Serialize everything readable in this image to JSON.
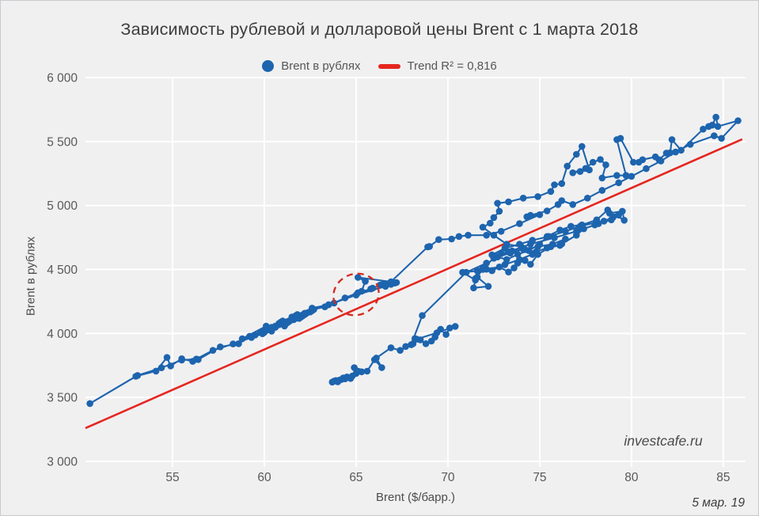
{
  "title": "Зависимость рублевой и долларовой цены Brent с 1 марта 2018",
  "legend": {
    "series_label": "Brent в рублях",
    "trend_label": "Trend R² = 0,816"
  },
  "watermark": "investcafe.ru",
  "date_label": "5 мар. 19",
  "colors": {
    "series": "#1d64ae",
    "trend": "#e5261f",
    "annotation": "#d42a20",
    "grid": "#ffffff",
    "background": "#f0f0f1",
    "tick_text": "#595959",
    "title_text": "#3d3d3d"
  },
  "chart_data": {
    "type": "scatter",
    "title": "Зависимость рублевой и долларовой цены Brent с 1 марта 2018",
    "xlabel": "Brent ($/барр.)",
    "ylabel": "Brent в рублях",
    "xlim": [
      50.26,
      86.21
    ],
    "ylim": [
      3000,
      6000
    ],
    "x_ticks": [
      55,
      60,
      65,
      70,
      75,
      80,
      85
    ],
    "y_ticks": [
      3000,
      3500,
      4000,
      4500,
      5000,
      5500,
      6000
    ],
    "y_tick_labels": [
      "3 000",
      "3 500",
      "4 000",
      "4 500",
      "5 000",
      "5 500",
      "6 000"
    ],
    "grid": true,
    "legend_position": "top-center",
    "series_name": "Brent в рублях",
    "trend": {
      "label": "Trend R² = 0,816",
      "r2": "0,816",
      "x1": 50.26,
      "y1": 3260,
      "x2": 86.03,
      "y2": 5518
    },
    "annotation_ellipse": {
      "cx": 65.0,
      "cy": 4305,
      "rx": 1.25,
      "ry": 160,
      "rotation_deg": -20
    },
    "points": [
      [
        63.8,
        3627
      ],
      [
        64.3,
        3652
      ],
      [
        63.9,
        3632
      ],
      [
        64.5,
        3660
      ],
      [
        65.0,
        3688
      ],
      [
        64.2,
        3640
      ],
      [
        63.7,
        3620
      ],
      [
        64.0,
        3622
      ],
      [
        64.1,
        3636
      ],
      [
        64.7,
        3648
      ],
      [
        64.4,
        3645
      ],
      [
        64.8,
        3668
      ],
      [
        65.3,
        3700
      ],
      [
        64.9,
        3733
      ],
      [
        65.6,
        3705
      ],
      [
        66.0,
        3795
      ],
      [
        66.4,
        3733
      ],
      [
        66.1,
        3808
      ],
      [
        66.9,
        3888
      ],
      [
        67.4,
        3868
      ],
      [
        68.1,
        3920
      ],
      [
        68.2,
        3960
      ],
      [
        68.5,
        3950
      ],
      [
        68.8,
        3920
      ],
      [
        69.1,
        3940
      ],
      [
        69.3,
        3972
      ],
      [
        69.6,
        4033
      ],
      [
        69.9,
        3992
      ],
      [
        70.1,
        4043
      ],
      [
        70.4,
        4055
      ],
      [
        69.4,
        4005
      ],
      [
        68.3,
        3955
      ],
      [
        67.7,
        3898
      ],
      [
        68.0,
        3912
      ],
      [
        68.6,
        4140
      ],
      [
        71.0,
        4478
      ],
      [
        72.1,
        4550
      ],
      [
        71.6,
        4490
      ],
      [
        72.4,
        4490
      ],
      [
        71.9,
        4500
      ],
      [
        71.5,
        4428
      ],
      [
        71.6,
        4440
      ],
      [
        72.2,
        4368
      ],
      [
        71.4,
        4356
      ],
      [
        71.5,
        4418
      ],
      [
        70.8,
        4478
      ],
      [
        71.6,
        4489
      ],
      [
        72.1,
        4502
      ],
      [
        72.8,
        4520
      ],
      [
        73.3,
        4480
      ],
      [
        73.6,
        4512
      ],
      [
        73.8,
        4550
      ],
      [
        74.2,
        4570
      ],
      [
        74.5,
        4540
      ],
      [
        74.9,
        4618
      ],
      [
        75.6,
        4678
      ],
      [
        76.2,
        4700
      ],
      [
        77.0,
        4768
      ],
      [
        77.4,
        4818
      ],
      [
        78.0,
        4848
      ],
      [
        78.5,
        4878
      ],
      [
        79.0,
        4908
      ],
      [
        79.3,
        4925
      ],
      [
        78.8,
        4940
      ],
      [
        79.5,
        4955
      ],
      [
        79.6,
        4885
      ],
      [
        78.7,
        4965
      ],
      [
        78.1,
        4888
      ],
      [
        77.3,
        4848
      ],
      [
        76.7,
        4838
      ],
      [
        76.1,
        4808
      ],
      [
        75.4,
        4758
      ],
      [
        75.0,
        4697
      ],
      [
        74.4,
        4648
      ],
      [
        73.8,
        4618
      ],
      [
        73.2,
        4578
      ],
      [
        72.7,
        4598
      ],
      [
        73.4,
        4628
      ],
      [
        74.1,
        4658
      ],
      [
        74.8,
        4638
      ],
      [
        75.4,
        4668
      ],
      [
        76.1,
        4688
      ],
      [
        76.4,
        4738
      ],
      [
        75.7,
        4698
      ],
      [
        74.9,
        4678
      ],
      [
        74.2,
        4656
      ],
      [
        73.5,
        4645
      ],
      [
        72.9,
        4624
      ],
      [
        72.4,
        4614
      ],
      [
        73.1,
        4666
      ],
      [
        73.9,
        4698
      ],
      [
        74.6,
        4728
      ],
      [
        75.5,
        4758
      ],
      [
        76.4,
        4798
      ],
      [
        77.2,
        4838
      ],
      [
        78.1,
        4868
      ],
      [
        78.9,
        4888
      ],
      [
        78.2,
        4858
      ],
      [
        77.0,
        4798
      ],
      [
        75.8,
        4748
      ],
      [
        74.5,
        4698
      ],
      [
        73.3,
        4638
      ],
      [
        72.5,
        4588
      ],
      [
        71.9,
        4510
      ],
      [
        72.4,
        4492
      ],
      [
        73.1,
        4538
      ],
      [
        73.9,
        4578
      ],
      [
        74.6,
        4618
      ],
      [
        74.0,
        4678
      ],
      [
        73.2,
        4698
      ],
      [
        72.5,
        4768
      ],
      [
        71.9,
        4830
      ],
      [
        72.3,
        4862
      ],
      [
        72.5,
        4906
      ],
      [
        72.8,
        4955
      ],
      [
        72.7,
        5018
      ],
      [
        73.3,
        5028
      ],
      [
        74.1,
        5058
      ],
      [
        74.9,
        5070
      ],
      [
        75.6,
        5110
      ],
      [
        75.8,
        5162
      ],
      [
        76.2,
        5172
      ],
      [
        76.5,
        5308
      ],
      [
        77.0,
        5400
      ],
      [
        77.3,
        5462
      ],
      [
        77.7,
        5278
      ],
      [
        77.2,
        5266
      ],
      [
        76.8,
        5256
      ],
      [
        77.5,
        5290
      ],
      [
        77.9,
        5338
      ],
      [
        78.3,
        5360
      ],
      [
        78.6,
        5318
      ],
      [
        78.4,
        5215
      ],
      [
        79.2,
        5235
      ],
      [
        79.7,
        5235
      ],
      [
        79.2,
        5515
      ],
      [
        79.4,
        5525
      ],
      [
        80.1,
        5338
      ],
      [
        80.4,
        5338
      ],
      [
        80.6,
        5358
      ],
      [
        81.3,
        5380
      ],
      [
        81.5,
        5358
      ],
      [
        81.9,
        5410
      ],
      [
        82.1,
        5412
      ],
      [
        82.2,
        5515
      ],
      [
        82.7,
        5432
      ],
      [
        83.9,
        5597
      ],
      [
        84.2,
        5618
      ],
      [
        84.4,
        5628
      ],
      [
        84.6,
        5690
      ],
      [
        84.7,
        5618
      ],
      [
        85.8,
        5663
      ],
      [
        84.9,
        5525
      ],
      [
        84.5,
        5545
      ],
      [
        83.2,
        5478
      ],
      [
        82.4,
        5418
      ],
      [
        81.6,
        5348
      ],
      [
        80.8,
        5288
      ],
      [
        80.0,
        5228
      ],
      [
        79.3,
        5178
      ],
      [
        78.4,
        5118
      ],
      [
        77.6,
        5058
      ],
      [
        76.8,
        5008
      ],
      [
        76.2,
        5038
      ],
      [
        76.0,
        5008
      ],
      [
        75.4,
        4958
      ],
      [
        74.5,
        4924
      ],
      [
        74.3,
        4912
      ],
      [
        75.0,
        4928
      ],
      [
        73.9,
        4858
      ],
      [
        72.9,
        4798
      ],
      [
        72.1,
        4768
      ],
      [
        71.1,
        4768
      ],
      [
        70.6,
        4758
      ],
      [
        70.2,
        4738
      ],
      [
        69.5,
        4734
      ],
      [
        69.0,
        4680
      ],
      [
        68.9,
        4676
      ],
      [
        66.9,
        4404
      ],
      [
        66.3,
        4378
      ],
      [
        65.9,
        4354
      ],
      [
        66.5,
        4390
      ],
      [
        67.1,
        4394
      ],
      [
        66.6,
        4368
      ],
      [
        65.0,
        4300
      ],
      [
        63.5,
        4224
      ],
      [
        62.6,
        4198
      ],
      [
        61.8,
        4148
      ],
      [
        60.9,
        4088
      ],
      [
        60.2,
        4038
      ],
      [
        59.5,
        3988
      ],
      [
        58.8,
        3958
      ],
      [
        60.1,
        4058
      ],
      [
        60.4,
        4048
      ],
      [
        61.0,
        4098
      ],
      [
        61.5,
        4128
      ],
      [
        62.2,
        4158
      ],
      [
        61.7,
        4138
      ],
      [
        61.6,
        4118
      ],
      [
        60.8,
        4078
      ],
      [
        60.6,
        4058
      ],
      [
        60.0,
        4018
      ],
      [
        59.8,
        4008
      ],
      [
        59.2,
        3978
      ],
      [
        58.6,
        3920
      ],
      [
        57.6,
        3895
      ],
      [
        56.4,
        3796
      ],
      [
        56.1,
        3782
      ],
      [
        55.5,
        3802
      ],
      [
        54.9,
        3746
      ],
      [
        54.7,
        3812
      ],
      [
        54.1,
        3706
      ],
      [
        53.0,
        3665
      ],
      [
        50.5,
        3452
      ],
      [
        53.1,
        3672
      ],
      [
        54.4,
        3732
      ],
      [
        55.5,
        3792
      ],
      [
        56.3,
        3800
      ],
      [
        57.2,
        3868
      ],
      [
        58.3,
        3918
      ],
      [
        59.3,
        3968
      ],
      [
        59.9,
        3998
      ],
      [
        60.0,
        4008
      ],
      [
        60.6,
        4048
      ],
      [
        60.9,
        4078
      ],
      [
        61.3,
        4088
      ],
      [
        61.9,
        4118
      ],
      [
        61.4,
        4098
      ],
      [
        61.1,
        4058
      ],
      [
        60.8,
        4068
      ],
      [
        60.4,
        4018
      ],
      [
        60.2,
        4028
      ],
      [
        61.6,
        4108
      ],
      [
        62.2,
        4148
      ],
      [
        62.6,
        4178
      ],
      [
        62.3,
        4158
      ],
      [
        61.9,
        4138
      ],
      [
        61.7,
        4118
      ],
      [
        61.2,
        4078
      ],
      [
        62.0,
        4128
      ],
      [
        62.1,
        4138
      ],
      [
        62.5,
        4168
      ],
      [
        62.7,
        4188
      ],
      [
        63.3,
        4208
      ],
      [
        63.8,
        4238
      ],
      [
        64.4,
        4278
      ],
      [
        65.1,
        4318
      ],
      [
        65.8,
        4348
      ],
      [
        66.3,
        4376
      ],
      [
        66.7,
        4388
      ],
      [
        67.1,
        4394
      ],
      [
        66.9,
        4384
      ],
      [
        66.5,
        4378
      ],
      [
        67.2,
        4398
      ],
      [
        65.1,
        4438
      ],
      [
        65.5,
        4408
      ],
      [
        65.3,
        4330
      ]
    ]
  }
}
